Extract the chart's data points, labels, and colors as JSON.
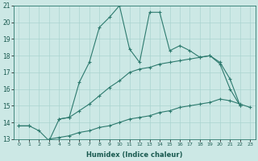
{
  "xlabel": "Humidex (Indice chaleur)",
  "x_values": [
    0,
    1,
    2,
    3,
    4,
    5,
    6,
    7,
    8,
    9,
    10,
    11,
    12,
    13,
    14,
    15,
    16,
    17,
    18,
    19,
    20,
    21,
    22,
    23
  ],
  "line1_y": [
    13.8,
    13.8,
    13.5,
    12.9,
    14.2,
    14.3,
    16.4,
    17.6,
    19.7,
    20.3,
    21.0,
    18.4,
    17.6,
    20.6,
    20.6,
    18.3,
    18.6,
    18.3,
    17.9,
    18.0,
    17.6,
    16.6,
    15.0,
    null
  ],
  "line2_y": [
    13.8,
    13.8,
    null,
    null,
    14.2,
    14.3,
    14.7,
    15.1,
    15.6,
    16.1,
    16.5,
    17.0,
    17.2,
    17.3,
    17.5,
    17.6,
    17.7,
    17.8,
    17.9,
    18.0,
    17.5,
    16.0,
    15.0,
    null
  ],
  "line3_y": [
    null,
    null,
    null,
    13.0,
    13.1,
    13.2,
    13.4,
    13.5,
    13.7,
    13.8,
    14.0,
    14.2,
    14.3,
    14.4,
    14.6,
    14.7,
    14.9,
    15.0,
    15.1,
    15.2,
    15.4,
    15.3,
    15.1,
    14.9
  ],
  "line_color": "#2d7a6e",
  "bg_color": "#cce8e5",
  "grid_color": "#aad4d0",
  "ylim": [
    13,
    21
  ],
  "yticks": [
    13,
    14,
    15,
    16,
    17,
    18,
    19,
    20,
    21
  ],
  "xticks": [
    0,
    1,
    2,
    3,
    4,
    5,
    6,
    7,
    8,
    9,
    10,
    11,
    12,
    13,
    14,
    15,
    16,
    17,
    18,
    19,
    20,
    21,
    22,
    23
  ]
}
